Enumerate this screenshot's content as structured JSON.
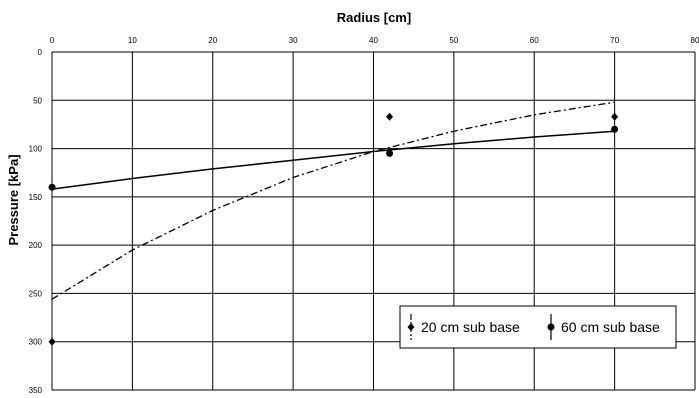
{
  "chart_data": {
    "type": "scatter",
    "title": "",
    "xlabel": "Radius [cm]",
    "ylabel": "Pressure [kPa]",
    "xlim": [
      0,
      80
    ],
    "ylim": [
      0,
      350
    ],
    "y_reversed": true,
    "x_axis_position": "top",
    "grid": true,
    "x_ticks": [
      0,
      10,
      20,
      30,
      40,
      50,
      60,
      70,
      80
    ],
    "y_ticks": [
      0,
      50,
      100,
      150,
      200,
      250,
      300,
      350
    ],
    "x_tick_labels": [
      "0",
      "10",
      "20",
      "30",
      "40",
      "50",
      "60",
      "70",
      "80"
    ],
    "y_tick_labels": [
      "0",
      "50",
      "100",
      "150",
      "200",
      "250",
      "300",
      "350"
    ],
    "legend_position": "bottom-right",
    "series": [
      {
        "name": "20 cm sub base",
        "marker": "diamond",
        "points": [
          {
            "x": 0,
            "y": 300
          },
          {
            "x": 42,
            "y": 67
          },
          {
            "x": 70,
            "y": 67
          }
        ],
        "trendline_style": "dash-dot",
        "trendline": [
          {
            "x": 0,
            "y": 256
          },
          {
            "x": 10,
            "y": 205
          },
          {
            "x": 20,
            "y": 164
          },
          {
            "x": 30,
            "y": 130
          },
          {
            "x": 40,
            "y": 103
          },
          {
            "x": 50,
            "y": 82
          },
          {
            "x": 60,
            "y": 65
          },
          {
            "x": 70,
            "y": 52
          }
        ]
      },
      {
        "name": "60 cm sub base",
        "marker": "circle",
        "points": [
          {
            "x": 0,
            "y": 140
          },
          {
            "x": 42,
            "y": 105
          },
          {
            "x": 70,
            "y": 80
          }
        ],
        "trendline_style": "solid",
        "trendline": [
          {
            "x": 0,
            "y": 142
          },
          {
            "x": 10,
            "y": 131
          },
          {
            "x": 20,
            "y": 121
          },
          {
            "x": 30,
            "y": 112
          },
          {
            "x": 40,
            "y": 103
          },
          {
            "x": 50,
            "y": 95
          },
          {
            "x": 60,
            "y": 88
          },
          {
            "x": 70,
            "y": 82
          }
        ]
      }
    ]
  }
}
